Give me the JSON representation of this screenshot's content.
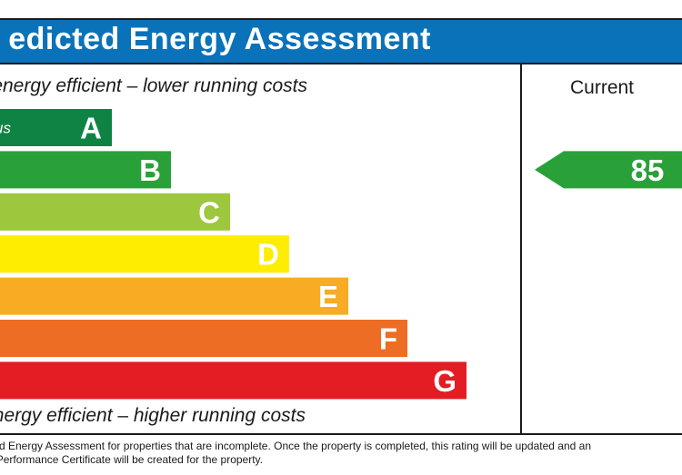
{
  "header": {
    "title": "edicted Energy Assessment"
  },
  "captions": {
    "top": "energy efficient – lower running costs",
    "bottom": "nergy efficient – higher running costs"
  },
  "columns": {
    "current": "Current"
  },
  "footer": {
    "line1": "dicted Energy Assessment for properties that are incomplete. Once the property is completed, this rating will be updated and an",
    "line2": "y Performance Certificate will be created for the property."
  },
  "chart_data": {
    "type": "bar",
    "categories": [
      "A",
      "B",
      "C",
      "D",
      "E",
      "F",
      "G"
    ],
    "band_prefix": "us",
    "colors": [
      "#0f8343",
      "#2aa039",
      "#9dc73d",
      "#ffed00",
      "#f8ac23",
      "#ed6d24",
      "#e31d23"
    ],
    "current": {
      "value": "85",
      "band": "B",
      "color": "#2aa039"
    }
  }
}
